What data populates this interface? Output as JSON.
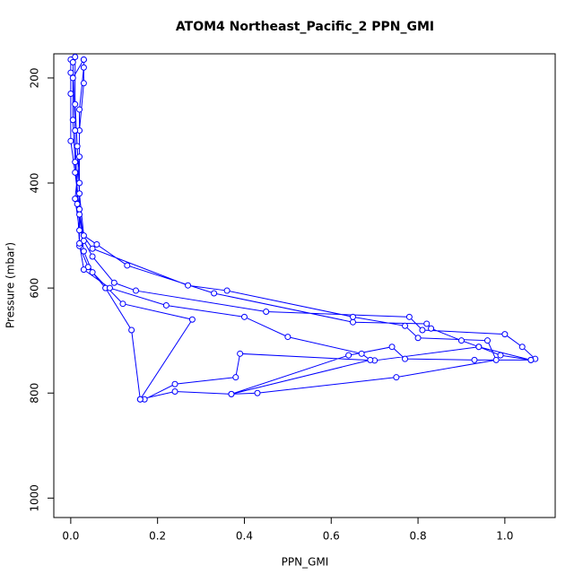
{
  "chart_data": {
    "type": "line",
    "title": "ATOM4 Northeast_Pacific_2 PPN_GMI",
    "x_label": "PPN_GMI",
    "y_label": "Pressure (mbar)",
    "xlim": [
      -0.039,
      1.116
    ],
    "ylim": [
      1037,
      154
    ],
    "xticks": [
      {
        "value": 0,
        "label": "0.0"
      },
      0.2,
      0.4,
      0.6,
      0.8,
      {
        "value": 1,
        "label": "1.0"
      }
    ],
    "yticks": [
      200,
      400,
      600,
      800,
      1000
    ],
    "series": [
      {
        "color": "#0000ff",
        "x": [
          0.03,
          0.03,
          0.02,
          0.02,
          0.02,
          0.03,
          0.05,
          0.1,
          0.15,
          0.45,
          0.78,
          0.81,
          1.0,
          1.04,
          1.07,
          1.06,
          0.94,
          0.7,
          0.39,
          0.38,
          0.24,
          0.17,
          0.16,
          0.14,
          0.08,
          0.04,
          0.02,
          0.02,
          0.01,
          0.0,
          0.0,
          0.0,
          0.0,
          0.01,
          0.01,
          0.015,
          0.02,
          0.03,
          0.06,
          0.13,
          0.33,
          0.65,
          0.82,
          0.83,
          0.9,
          0.94,
          0.99,
          1.06,
          0.93,
          0.77,
          0.74,
          0.64,
          0.37,
          0.24,
          0.16,
          0.28,
          0.12,
          0.05,
          0.03,
          0.02,
          0.01,
          0.005,
          0.005,
          0.03,
          0.03,
          0.02,
          0.02,
          0.01,
          0.02,
          0.05,
          0.27,
          0.36,
          0.65,
          0.77,
          0.8,
          0.96,
          0.98,
          0.75,
          0.43,
          0.37,
          0.69,
          0.67,
          0.5,
          0.4,
          0.22,
          0.09,
          0.03,
          0.02,
          0.015,
          0.01,
          0.005
        ],
        "values": [
          165,
          210,
          300,
          400,
          450,
          510,
          540,
          590,
          605,
          645,
          655,
          680,
          688,
          712,
          735,
          737,
          712,
          738,
          725,
          770,
          783,
          812,
          812,
          680,
          600,
          560,
          520,
          450,
          380,
          320,
          230,
          190,
          165,
          160,
          250,
          330,
          420,
          500,
          517,
          557,
          610,
          665,
          668,
          677,
          700,
          712,
          728,
          737,
          737,
          735,
          712,
          728,
          802,
          797,
          812,
          660,
          630,
          570,
          530,
          460,
          360,
          280,
          200,
          165,
          180,
          260,
          350,
          430,
          490,
          525,
          595,
          605,
          655,
          672,
          695,
          700,
          737,
          770,
          800,
          802,
          737,
          725,
          693,
          655,
          633,
          600,
          565,
          515,
          440,
          300,
          170
        ]
      }
    ]
  }
}
